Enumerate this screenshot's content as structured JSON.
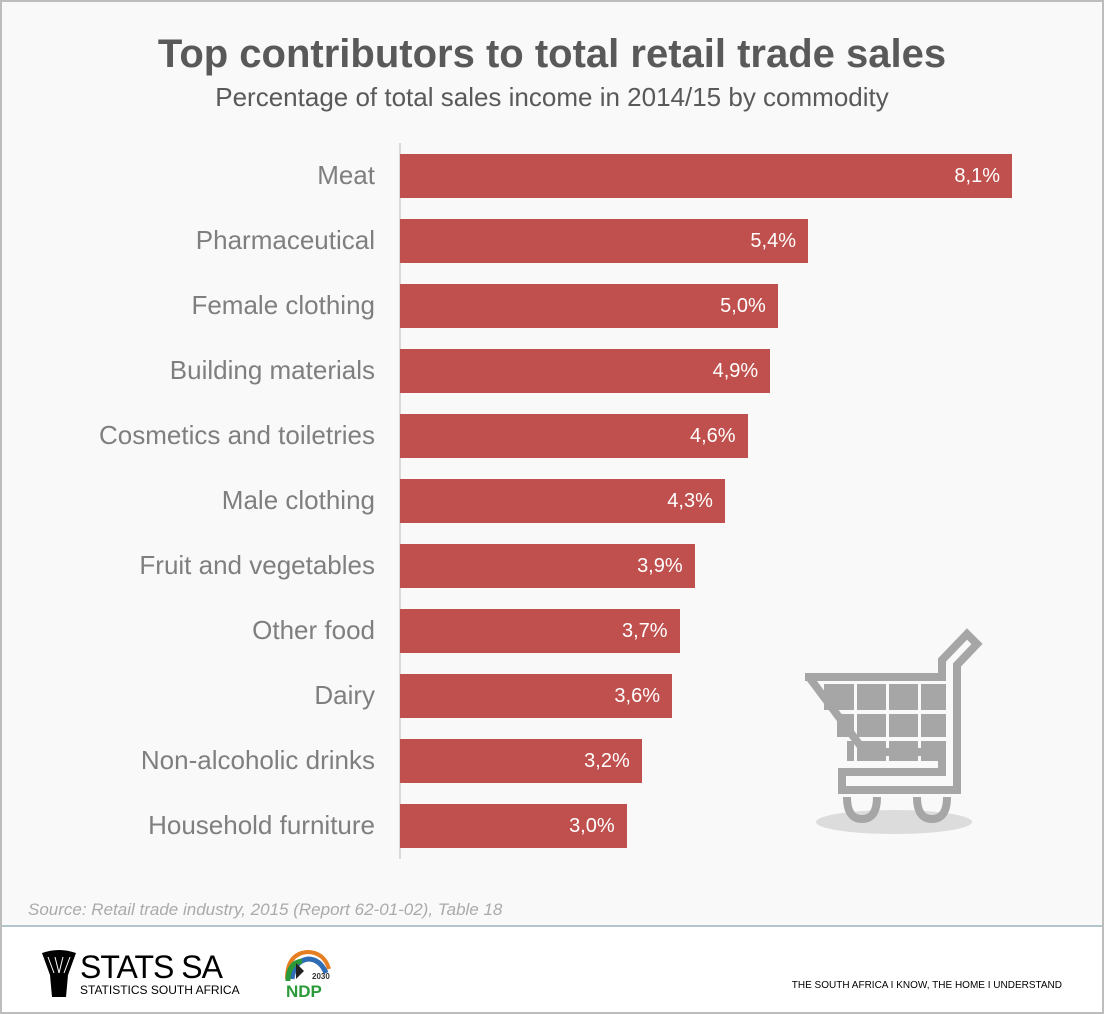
{
  "chart_data": {
    "type": "bar",
    "orientation": "horizontal",
    "title": "Top contributors to total retail trade sales",
    "subtitle": "Percentage of total sales income in 2014/15 by commodity",
    "categories": [
      "Meat",
      "Pharmaceutical",
      "Female clothing",
      "Building materials",
      "Cosmetics and toiletries",
      "Male clothing",
      "Fruit and vegetables",
      "Other food",
      "Dairy",
      "Non-alcoholic drinks",
      "Household furniture"
    ],
    "values": [
      8.1,
      5.4,
      5.0,
      4.9,
      4.6,
      4.3,
      3.9,
      3.7,
      3.6,
      3.2,
      3.0
    ],
    "value_labels": [
      "8,1%",
      "5,4%",
      "5,0%",
      "4,9%",
      "4,6%",
      "4,3%",
      "3,9%",
      "3,7%",
      "3,6%",
      "3,2%",
      "3,0%"
    ],
    "xlim": [
      0,
      8.1
    ],
    "grid": false,
    "bar_color": "#c0504d"
  },
  "source": "Source: Retail trade industry, 2015 (Report 62-01-02), Table 18",
  "footer": {
    "org_name": "STATS SA",
    "org_sub": "STATISTICS SOUTH AFRICA",
    "ndp_text": "NDP",
    "ndp_year": "2030",
    "tagline": "THE SOUTH AFRICA I KNOW, THE HOME I UNDERSTAND"
  }
}
